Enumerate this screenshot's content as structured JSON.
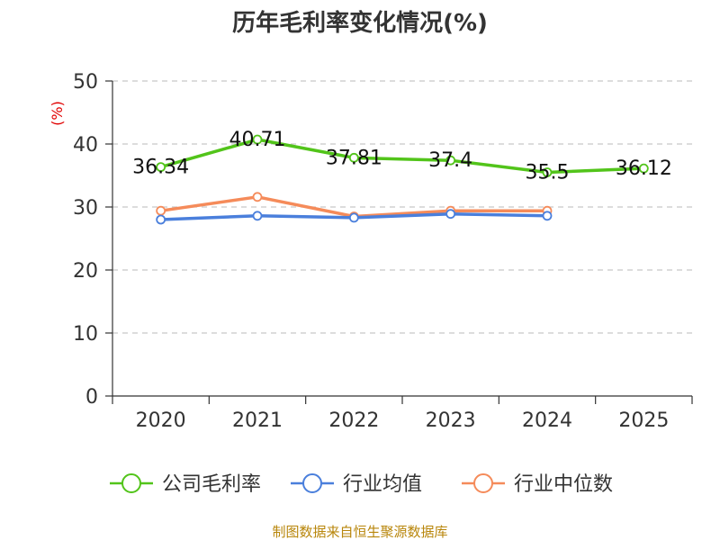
{
  "chart_data": {
    "type": "line",
    "title": "历年毛利率变化情况(%)",
    "ylabel": "(%)",
    "xlabel": "",
    "categories": [
      "2020",
      "2021",
      "2022",
      "2023",
      "2024",
      "2025"
    ],
    "ylim": [
      0,
      50
    ],
    "yticks": [
      0,
      10,
      20,
      30,
      40,
      50
    ],
    "grid": true,
    "legend_position": "bottom",
    "series": [
      {
        "name": "公司毛利率",
        "color": "#52c41a",
        "values": [
          36.34,
          40.71,
          37.81,
          37.4,
          35.5,
          36.12
        ],
        "labels": [
          "36.34",
          "40.71",
          "37.81",
          "37.4",
          "35.5",
          "36.12"
        ]
      },
      {
        "name": "行业均值",
        "color": "#4a7fdc",
        "values": [
          28.0,
          28.6,
          28.3,
          28.9,
          28.6,
          null
        ]
      },
      {
        "name": "行业中位数",
        "color": "#f58b5a",
        "values": [
          29.4,
          31.6,
          28.5,
          29.4,
          29.4,
          null
        ]
      }
    ]
  },
  "source": "制图数据来自恒生聚源数据库"
}
